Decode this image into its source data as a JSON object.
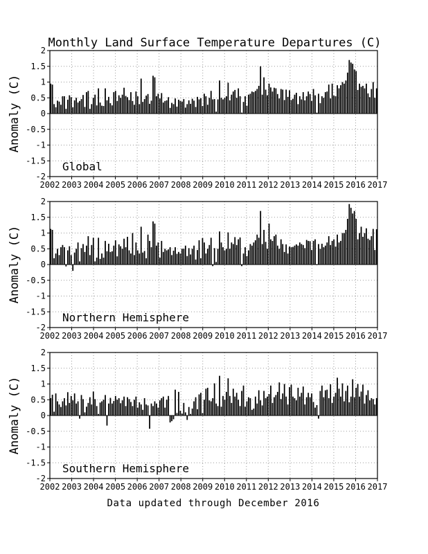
{
  "chart_data": {
    "type": "bar",
    "title": "Monthly Land Surface Temperature Departures (C)",
    "footer": "Data updated through December 2016",
    "ylabel": "Anomaly (C)",
    "xlim": [
      2002,
      2017
    ],
    "ylim": [
      -2,
      2
    ],
    "x_ticks": [
      "2002",
      "2003",
      "2004",
      "2005",
      "2006",
      "2007",
      "2008",
      "2009",
      "2010",
      "2011",
      "2012",
      "2013",
      "2014",
      "2015",
      "2016",
      "2017"
    ],
    "y_ticks": [
      "2",
      "1.5",
      "1",
      "0.5",
      "0",
      "-0.5",
      "-1",
      "-1.5",
      "-2"
    ],
    "grid": true,
    "colors": {
      "bars": "#000000",
      "grid": "#9a9a9a",
      "frame": "#000000"
    },
    "x_start_year": 2002,
    "panels": [
      {
        "label": "Global",
        "values": [
          0.95,
          0.92,
          0.3,
          0.2,
          0.41,
          0.38,
          0.28,
          0.55,
          0.55,
          0.15,
          0.44,
          0.58,
          0.52,
          0.2,
          0.42,
          0.5,
          0.35,
          0.4,
          0.46,
          0.59,
          0.21,
          0.68,
          0.72,
          0.15,
          0.3,
          0.5,
          0.6,
          0.26,
          0.8,
          0.35,
          0.25,
          0.24,
          0.8,
          0.42,
          0.53,
          0.33,
          0.26,
          0.68,
          0.72,
          0.4,
          0.58,
          0.5,
          0.6,
          0.82,
          0.56,
          0.52,
          0.43,
          0.68,
          0.4,
          0.28,
          0.7,
          0.55,
          0.3,
          1.11,
          0.37,
          0.46,
          0.57,
          0.62,
          0.31,
          0.41,
          1.2,
          1.15,
          0.55,
          0.63,
          0.48,
          0.65,
          0.35,
          0.4,
          0.42,
          0.52,
          0.18,
          0.34,
          0.3,
          0.48,
          0.22,
          0.44,
          0.4,
          0.38,
          0.46,
          0.19,
          0.3,
          0.42,
          0.31,
          0.47,
          0.41,
          0.21,
          0.53,
          0.45,
          0.49,
          0.24,
          0.63,
          0.55,
          0.28,
          0.5,
          0.72,
          0.45,
          0.46,
          0.06,
          0.45,
          1.05,
          0.5,
          0.45,
          0.5,
          0.55,
          0.98,
          0.42,
          0.6,
          0.7,
          0.75,
          0.5,
          0.8,
          0.55,
          0.03,
          0.37,
          0.55,
          0.25,
          0.6,
          0.63,
          0.7,
          0.68,
          0.72,
          0.78,
          0.88,
          1.5,
          0.6,
          1.15,
          0.76,
          0.58,
          0.95,
          0.83,
          0.7,
          0.82,
          0.8,
          0.62,
          0.48,
          0.78,
          0.76,
          0.43,
          0.76,
          0.53,
          0.74,
          0.43,
          0.47,
          0.6,
          0.66,
          0.3,
          0.55,
          0.45,
          0.68,
          0.42,
          0.55,
          0.7,
          0.62,
          0.4,
          0.78,
          0.58,
          0.03,
          0.63,
          0.33,
          0.55,
          0.5,
          0.68,
          0.7,
          0.92,
          0.48,
          0.95,
          0.57,
          0.55,
          0.9,
          0.8,
          0.9,
          1.0,
          0.95,
          1.05,
          1.3,
          1.7,
          1.62,
          1.58,
          1.4,
          1.35,
          0.75,
          0.95,
          0.85,
          0.88,
          0.8,
          0.95,
          0.64,
          0.52,
          0.78,
          1.0,
          0.5,
          0.8
        ]
      },
      {
        "label": "Northern Hemisphere",
        "values": [
          1.13,
          1.1,
          0.2,
          0.35,
          0.5,
          0.3,
          0.55,
          0.62,
          0.55,
          -0.06,
          0.45,
          0.58,
          0.3,
          -0.2,
          0.38,
          0.5,
          0.7,
          0.1,
          0.52,
          0.65,
          0.4,
          0.6,
          0.9,
          0.3,
          0.62,
          0.85,
          0.1,
          0.22,
          0.85,
          0.18,
          0.35,
          0.22,
          0.75,
          0.42,
          0.66,
          0.4,
          0.42,
          0.6,
          0.77,
          0.26,
          0.64,
          0.58,
          0.5,
          0.82,
          0.55,
          0.88,
          0.45,
          0.35,
          1.0,
          0.3,
          0.7,
          0.45,
          0.35,
          1.2,
          0.38,
          0.43,
          0.2,
          0.95,
          0.75,
          0.55,
          1.37,
          1.3,
          0.6,
          0.7,
          0.22,
          0.75,
          0.4,
          0.5,
          0.45,
          0.48,
          0.55,
          0.3,
          0.44,
          0.55,
          0.34,
          0.4,
          0.35,
          0.5,
          0.5,
          0.6,
          0.27,
          0.52,
          0.32,
          0.5,
          0.6,
          0.16,
          0.46,
          0.77,
          0.2,
          0.84,
          0.7,
          0.35,
          0.5,
          0.62,
          0.85,
          -0.05,
          0.52,
          0.08,
          0.5,
          1.05,
          0.7,
          0.55,
          0.45,
          0.5,
          1.02,
          0.5,
          0.7,
          0.65,
          0.87,
          0.62,
          0.8,
          0.86,
          -0.05,
          0.35,
          0.55,
          0.27,
          0.45,
          0.65,
          0.6,
          0.7,
          0.77,
          0.95,
          0.85,
          1.7,
          0.65,
          1.1,
          0.72,
          0.5,
          1.3,
          0.8,
          0.75,
          0.9,
          0.95,
          0.6,
          0.5,
          0.8,
          0.65,
          0.4,
          0.64,
          0.35,
          0.57,
          0.55,
          0.56,
          0.6,
          0.64,
          0.6,
          0.7,
          0.65,
          0.62,
          0.52,
          0.78,
          0.75,
          0.74,
          0.46,
          0.75,
          0.8,
          0.0,
          0.65,
          0.5,
          0.66,
          0.55,
          0.6,
          0.7,
          0.9,
          0.62,
          0.75,
          0.8,
          0.57,
          0.95,
          0.7,
          0.75,
          1.0,
          1.0,
          1.1,
          1.45,
          1.92,
          1.8,
          1.62,
          1.7,
          1.45,
          0.8,
          1.0,
          1.2,
          0.88,
          1.0,
          1.15,
          0.82,
          0.78,
          0.9,
          1.13,
          0.46,
          1.12
        ]
      },
      {
        "label": "Southern Hemisphere",
        "values": [
          0.55,
          0.66,
          0.12,
          0.7,
          0.45,
          0.35,
          0.27,
          0.45,
          0.55,
          0.32,
          0.74,
          0.4,
          0.62,
          0.48,
          0.7,
          0.38,
          0.45,
          -0.1,
          0.65,
          0.52,
          0.1,
          0.28,
          0.4,
          0.58,
          0.35,
          0.76,
          0.52,
          0.3,
          0.05,
          0.41,
          0.45,
          0.5,
          0.65,
          -0.32,
          0.38,
          0.56,
          0.38,
          0.46,
          0.62,
          0.5,
          0.55,
          0.39,
          0.48,
          0.6,
          0.3,
          0.58,
          0.52,
          0.43,
          0.3,
          0.5,
          0.6,
          0.25,
          0.42,
          0.35,
          0.18,
          0.55,
          0.35,
          0.32,
          -0.42,
          0.38,
          0.3,
          0.45,
          0.38,
          0.25,
          0.48,
          0.55,
          0.6,
          0.25,
          0.5,
          0.62,
          -0.22,
          -0.18,
          -0.12,
          0.82,
          0.08,
          0.75,
          0.15,
          0.06,
          0.4,
          0.1,
          -0.14,
          0.27,
          0.05,
          0.22,
          0.45,
          0.58,
          0.2,
          0.67,
          0.72,
          0.08,
          0.5,
          0.85,
          0.88,
          0.48,
          0.45,
          0.55,
          1.02,
          0.38,
          0.3,
          1.26,
          0.28,
          0.62,
          0.5,
          0.75,
          1.18,
          0.62,
          0.4,
          0.85,
          0.6,
          0.72,
          0.5,
          0.3,
          0.78,
          0.95,
          0.28,
          0.45,
          0.58,
          0.55,
          0.18,
          0.22,
          0.6,
          0.38,
          0.8,
          0.48,
          0.32,
          0.78,
          0.55,
          0.6,
          0.68,
          0.95,
          0.4,
          0.58,
          0.65,
          0.75,
          1.05,
          0.52,
          0.7,
          1.0,
          0.6,
          0.35,
          0.9,
          0.98,
          0.6,
          0.55,
          0.48,
          0.88,
          0.6,
          0.72,
          0.92,
          0.35,
          0.58,
          0.72,
          0.58,
          0.7,
          0.43,
          0.25,
          0.33,
          -0.1,
          0.78,
          0.95,
          0.58,
          0.8,
          0.82,
          0.55,
          0.99,
          0.4,
          0.6,
          0.72,
          1.2,
          0.85,
          0.6,
          1.02,
          0.45,
          0.78,
          0.95,
          0.42,
          0.6,
          1.15,
          0.58,
          0.88,
          1.0,
          0.6,
          0.76,
          0.98,
          0.38,
          0.65,
          0.8,
          0.48,
          0.55,
          0.52,
          0.35,
          0.55
        ]
      }
    ]
  }
}
